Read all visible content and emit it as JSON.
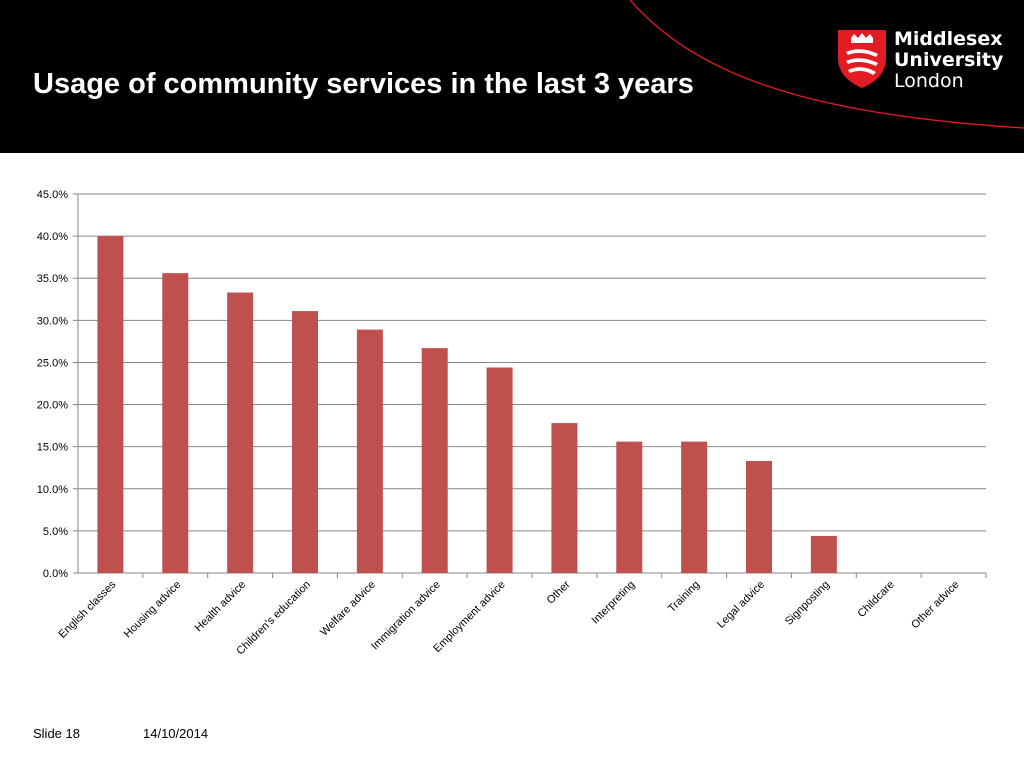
{
  "slide": {
    "title": "Usage of community services in the last 3 years",
    "slide_label": "Slide 18",
    "date": "14/10/2014"
  },
  "logo": {
    "line1": "Middlesex",
    "line2": "University",
    "line3": "London",
    "brand_color": "#e31b23"
  },
  "colors": {
    "header_bg": "#000000",
    "bar": "#c0504d",
    "gridline": "#868686",
    "axis_text": "#000000"
  },
  "chart_data": {
    "type": "bar",
    "title": "",
    "xlabel": "",
    "ylabel": "",
    "categories": [
      "English classes",
      "Housing advice",
      "Health advice",
      "Children's education",
      "Welfare advice",
      "Immigration advice",
      "Employment advice",
      "Other",
      "Interpreting",
      "Training",
      "Legal advice",
      "Signposting",
      "Childcare",
      "Other advice"
    ],
    "values": [
      40.0,
      35.6,
      33.3,
      31.1,
      28.9,
      26.7,
      24.4,
      17.8,
      15.6,
      15.6,
      13.3,
      4.4,
      0.0,
      0.0
    ],
    "yticks": [
      "0.0%",
      "5.0%",
      "10.0%",
      "15.0%",
      "20.0%",
      "25.0%",
      "30.0%",
      "35.0%",
      "40.0%",
      "45.0%"
    ],
    "ylim": [
      0,
      45
    ],
    "grid": true,
    "legend": "none"
  }
}
